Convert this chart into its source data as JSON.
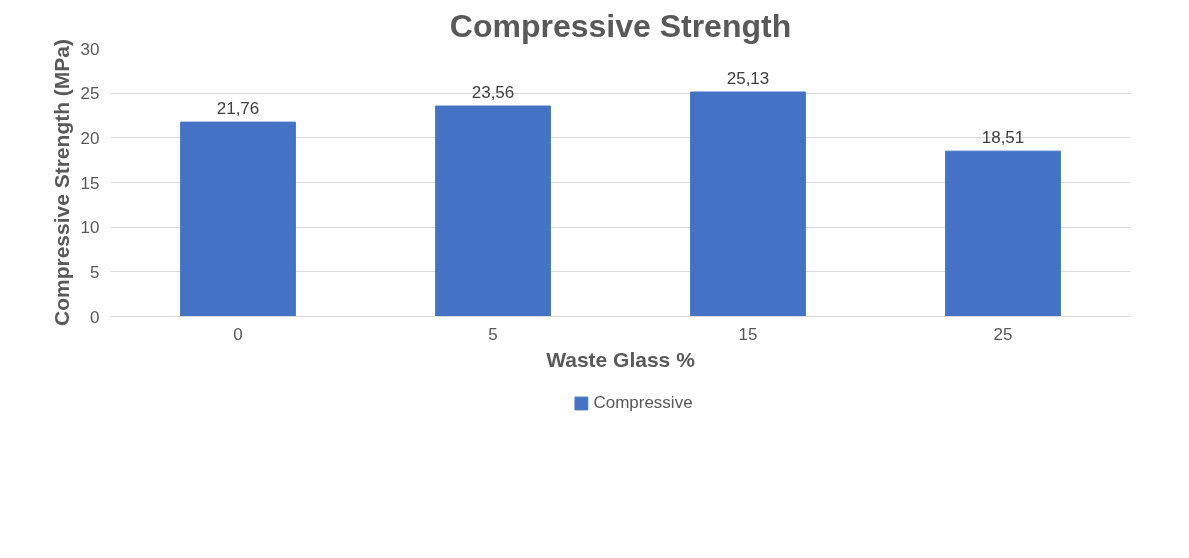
{
  "chart_data": {
    "type": "bar",
    "title": "Compressive Strength",
    "xlabel": "Waste Glass %",
    "ylabel": "Compressive Strength (MPa)",
    "categories": [
      "0",
      "5",
      "15",
      "25"
    ],
    "series": [
      {
        "name": "Compressive",
        "color": "#4472c4",
        "values": [
          21.76,
          23.56,
          25.13,
          18.51
        ],
        "value_labels": [
          "21,76",
          "23,56",
          "25,13",
          "18,51"
        ]
      }
    ],
    "ylim": [
      0,
      30
    ],
    "yticks": [
      0,
      5,
      10,
      15,
      20,
      25,
      30
    ],
    "grid": "y",
    "legend": "bottom"
  }
}
